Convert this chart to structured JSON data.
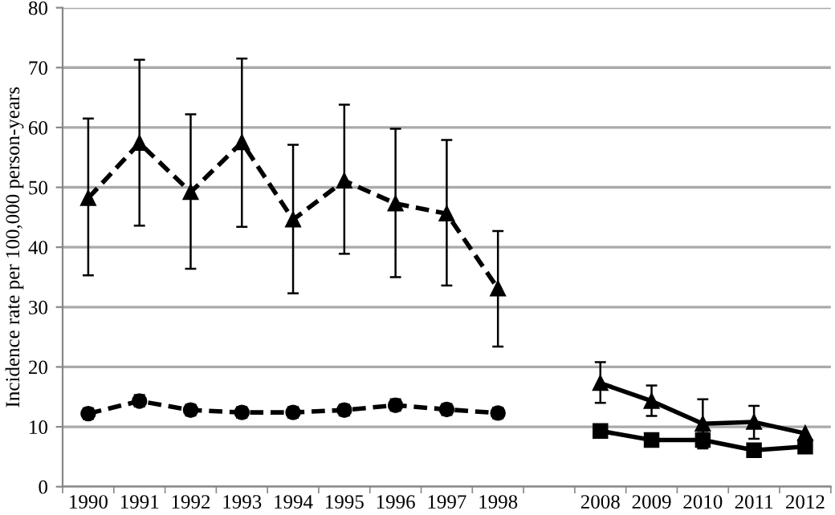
{
  "chart_data": {
    "type": "line",
    "ylabel": "Incidence rate per 100,000 person-years",
    "categories": [
      "1990",
      "1991",
      "1992",
      "1993",
      "1994",
      "1995",
      "1996",
      "1997",
      "1998",
      null,
      "2008",
      "2009",
      "2010",
      "2011",
      "2012"
    ],
    "ylim": [
      0,
      80
    ],
    "yticks": [
      0,
      10,
      20,
      30,
      40,
      50,
      60,
      70,
      80
    ],
    "grid": "y",
    "legend": false,
    "series": [
      {
        "color": "#000000",
        "marker": "triangle",
        "line_style": "dashed",
        "values": [
          48.2,
          57.4,
          49.2,
          57.5,
          44.6,
          51.1,
          47.3,
          45.6,
          33.1,
          null,
          null,
          null,
          null,
          null,
          null
        ],
        "errors": [
          [
            35.3,
            61.5
          ],
          [
            43.6,
            71.3
          ],
          [
            36.4,
            62.2
          ],
          [
            43.4,
            71.5
          ],
          [
            32.3,
            57.1
          ],
          [
            38.9,
            63.8
          ],
          [
            35.0,
            59.8
          ],
          [
            33.6,
            57.9
          ],
          [
            23.4,
            42.7
          ],
          null,
          null,
          null,
          null,
          null,
          null
        ]
      },
      {
        "color": "#000000",
        "marker": "circle",
        "line_style": "dashed",
        "values": [
          12.2,
          14.3,
          12.8,
          12.4,
          12.4,
          12.8,
          13.6,
          12.9,
          12.3,
          null,
          null,
          null,
          null,
          null,
          null
        ],
        "errors": [
          [
            11.3,
            13.1
          ],
          [
            13.4,
            15.3
          ],
          [
            11.9,
            13.7
          ],
          [
            11.5,
            13.3
          ],
          [
            11.5,
            13.3
          ],
          [
            11.9,
            13.7
          ],
          [
            12.7,
            14.6
          ],
          [
            12.0,
            13.8
          ],
          [
            11.4,
            13.2
          ],
          null,
          null,
          null,
          null,
          null,
          null
        ]
      },
      {
        "color": "#000000",
        "marker": "triangle",
        "line_style": "solid",
        "values": [
          null,
          null,
          null,
          null,
          null,
          null,
          null,
          null,
          null,
          null,
          17.3,
          14.3,
          10.5,
          10.8,
          8.9
        ],
        "errors": [
          null,
          null,
          null,
          null,
          null,
          null,
          null,
          null,
          null,
          null,
          [
            14.0,
            20.8
          ],
          [
            11.8,
            16.9
          ],
          [
            6.8,
            14.6
          ],
          [
            8.0,
            13.5
          ],
          null
        ]
      },
      {
        "color": "#000000",
        "marker": "square",
        "line_style": "solid",
        "values": [
          null,
          null,
          null,
          null,
          null,
          null,
          null,
          null,
          null,
          null,
          9.3,
          7.8,
          7.8,
          6.1,
          6.7
        ],
        "errors": [
          null,
          null,
          null,
          null,
          null,
          null,
          null,
          null,
          null,
          null,
          null,
          null,
          [
            6.4,
            9.3
          ],
          null,
          null
        ]
      }
    ]
  }
}
